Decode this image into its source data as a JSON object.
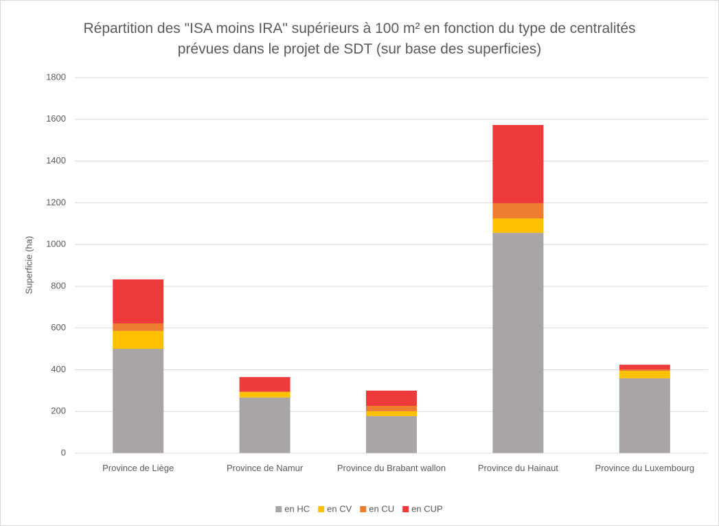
{
  "chart_data": {
    "type": "stacked_bar",
    "title": "Répartition des \"ISA moins IRA\" supérieurs à 100 m² en fonction du type de centralités prévues dans le projet de SDT (sur base des superficies)",
    "y_label": "Superficie (ha)",
    "categories": [
      "Province de Liège",
      "Province de Namur",
      "Province du Brabant wallon",
      "Province du Hainaut",
      "Province du Luxembourg"
    ],
    "series": [
      {
        "name": "en HC",
        "color": "#a9a5a5",
        "values": [
          500,
          267,
          178,
          1056,
          359
        ]
      },
      {
        "name": "en CV",
        "color": "#ffc000",
        "values": [
          86,
          26,
          23,
          69,
          36
        ]
      },
      {
        "name": "en CU",
        "color": "#ed7d31",
        "values": [
          36,
          3,
          26,
          73,
          6
        ]
      },
      {
        "name": "en CUP",
        "color": "#ee3a3a",
        "values": [
          211,
          69,
          73,
          375,
          23
        ]
      }
    ],
    "ylim": [
      0,
      1800
    ],
    "yticks": [
      0,
      200,
      400,
      600,
      800,
      1000,
      1200,
      1400,
      1600,
      1800
    ],
    "grid": true,
    "legend": "bottom"
  }
}
